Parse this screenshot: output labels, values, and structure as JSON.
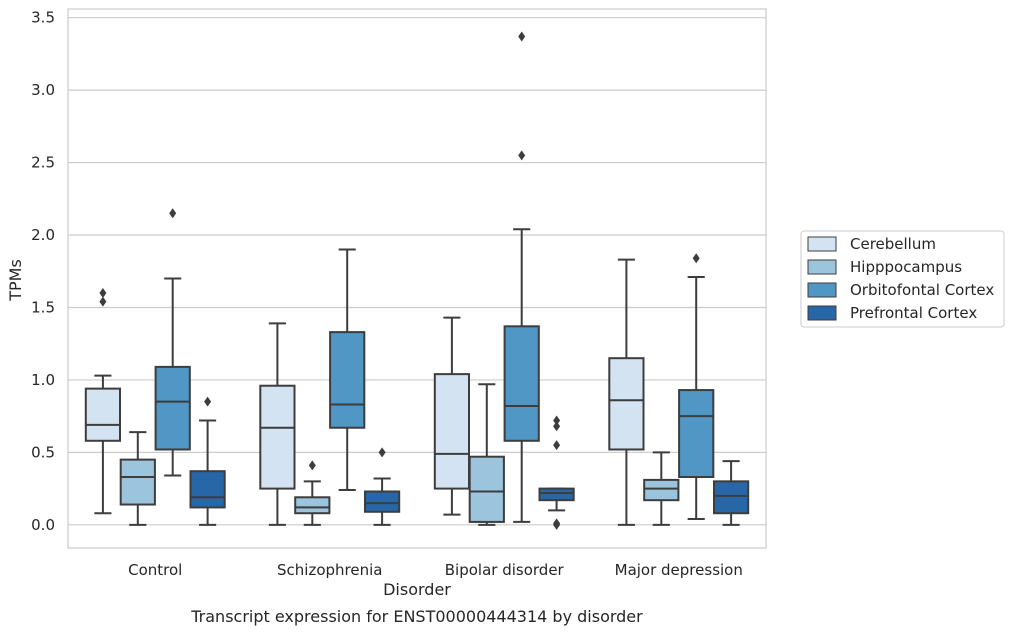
{
  "chart_data": {
    "type": "boxplot",
    "xlabel": "Disorder",
    "ylabel": "TPMs",
    "caption": "Transcript expression for ENST00000444314 by disorder",
    "ylim": [
      -0.16,
      3.56
    ],
    "yticks": [
      0.0,
      0.5,
      1.0,
      1.5,
      2.0,
      2.5,
      3.0,
      3.5
    ],
    "ytick_labels": [
      "0.0",
      "0.5",
      "1.0",
      "1.5",
      "2.0",
      "2.5",
      "3.0",
      "3.5"
    ],
    "grid": "horizontal",
    "legend_position": "right",
    "categories": [
      "Control",
      "Schizophrenia",
      "Bipolar disorder",
      "Major depression"
    ],
    "series": [
      {
        "name": "Cerebellum",
        "color": "#d3e3f2",
        "boxes": [
          {
            "whisker_low": 0.08,
            "q1": 0.58,
            "median": 0.69,
            "q3": 0.94,
            "whisker_high": 1.03,
            "outliers": [
              1.54,
              1.6
            ]
          },
          {
            "whisker_low": 0.0,
            "q1": 0.25,
            "median": 0.67,
            "q3": 0.96,
            "whisker_high": 1.39,
            "outliers": []
          },
          {
            "whisker_low": 0.07,
            "q1": 0.25,
            "median": 0.49,
            "q3": 1.04,
            "whisker_high": 1.43,
            "outliers": []
          },
          {
            "whisker_low": 0.0,
            "q1": 0.52,
            "median": 0.86,
            "q3": 1.15,
            "whisker_high": 1.83,
            "outliers": []
          }
        ]
      },
      {
        "name": "Hipppocampus",
        "color": "#9cc4dd",
        "boxes": [
          {
            "whisker_low": 0.0,
            "q1": 0.14,
            "median": 0.33,
            "q3": 0.45,
            "whisker_high": 0.64,
            "outliers": []
          },
          {
            "whisker_low": 0.0,
            "q1": 0.08,
            "median": 0.12,
            "q3": 0.19,
            "whisker_high": 0.3,
            "outliers": [
              0.41
            ]
          },
          {
            "whisker_low": 0.0,
            "q1": 0.02,
            "median": 0.23,
            "q3": 0.47,
            "whisker_high": 0.97,
            "outliers": []
          },
          {
            "whisker_low": 0.0,
            "q1": 0.17,
            "median": 0.25,
            "q3": 0.31,
            "whisker_high": 0.5,
            "outliers": []
          }
        ]
      },
      {
        "name": "Orbitofontal Cortex",
        "color": "#5097c6",
        "boxes": [
          {
            "whisker_low": 0.34,
            "q1": 0.52,
            "median": 0.85,
            "q3": 1.09,
            "whisker_high": 1.7,
            "outliers": [
              2.15
            ]
          },
          {
            "whisker_low": 0.24,
            "q1": 0.67,
            "median": 0.83,
            "q3": 1.33,
            "whisker_high": 1.9,
            "outliers": []
          },
          {
            "whisker_low": 0.02,
            "q1": 0.58,
            "median": 0.82,
            "q3": 1.37,
            "whisker_high": 2.04,
            "outliers": [
              2.55,
              3.37
            ]
          },
          {
            "whisker_low": 0.04,
            "q1": 0.33,
            "median": 0.75,
            "q3": 0.93,
            "whisker_high": 1.71,
            "outliers": [
              1.84
            ]
          }
        ]
      },
      {
        "name": "Prefrontal Cortex",
        "color": "#2867a7",
        "boxes": [
          {
            "whisker_low": 0.0,
            "q1": 0.12,
            "median": 0.19,
            "q3": 0.37,
            "whisker_high": 0.72,
            "outliers": [
              0.85
            ]
          },
          {
            "whisker_low": 0.0,
            "q1": 0.09,
            "median": 0.15,
            "q3": 0.23,
            "whisker_high": 0.32,
            "outliers": [
              0.5
            ]
          },
          {
            "whisker_low": 0.1,
            "q1": 0.17,
            "median": 0.22,
            "q3": 0.25,
            "whisker_high": 0.25,
            "outliers": [
              0.0,
              0.01,
              0.55,
              0.68,
              0.72
            ]
          },
          {
            "whisker_low": 0.0,
            "q1": 0.08,
            "median": 0.2,
            "q3": 0.3,
            "whisker_high": 0.44,
            "outliers": []
          }
        ]
      }
    ]
  }
}
